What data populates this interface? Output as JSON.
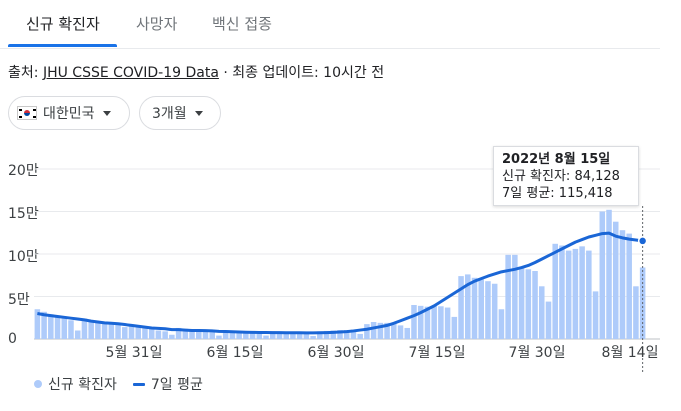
{
  "tabs": [
    "신규 확진자",
    "사망자",
    "백신 접종"
  ],
  "source": {
    "prefix": "출처: ",
    "link": "JHU CSSE COVID-19 Data",
    "suffix": " · 최종 업데이트: 10시간 전"
  },
  "filters": {
    "country": "대한민국",
    "period": "3개월"
  },
  "tooltip": {
    "date": "2022년 8월 15일",
    "cases_line": "신규 확진자: 84,128",
    "avg_line": "7일 평균: 115,418"
  },
  "legend": {
    "bars": "신규 확진자",
    "line": "7일 평균"
  },
  "colors": {
    "bar": "#aecbfa",
    "line": "#1a66d6",
    "accent": "#1a73e8"
  },
  "icons": {
    "country": "south-korea-flag-icon",
    "dropdown": "caret-down-icon"
  },
  "chart_data": {
    "type": "bar",
    "y_tick_labels": [
      "0",
      "5만",
      "10만",
      "15만",
      "20만"
    ],
    "ylim": [
      0,
      200000
    ],
    "x_tick_labels": [
      "5월 31일",
      "6월 15일",
      "6월 30일",
      "7월 15일",
      "7월 30일",
      "8월 14일"
    ],
    "x_start_date": "2022-05-17",
    "x": [
      "05-17",
      "05-18",
      "05-19",
      "05-20",
      "05-21",
      "05-22",
      "05-23",
      "05-24",
      "05-25",
      "05-26",
      "05-27",
      "05-28",
      "05-29",
      "05-30",
      "05-31",
      "06-01",
      "06-02",
      "06-03",
      "06-04",
      "06-05",
      "06-06",
      "06-07",
      "06-08",
      "06-09",
      "06-10",
      "06-11",
      "06-12",
      "06-13",
      "06-14",
      "06-15",
      "06-16",
      "06-17",
      "06-18",
      "06-19",
      "06-20",
      "06-21",
      "06-22",
      "06-23",
      "06-24",
      "06-25",
      "06-26",
      "06-27",
      "06-28",
      "06-29",
      "06-30",
      "07-01",
      "07-02",
      "07-03",
      "07-04",
      "07-05",
      "07-06",
      "07-07",
      "07-08",
      "07-09",
      "07-10",
      "07-11",
      "07-12",
      "07-13",
      "07-14",
      "07-15",
      "07-16",
      "07-17",
      "07-18",
      "07-19",
      "07-20",
      "07-21",
      "07-22",
      "07-23",
      "07-24",
      "07-25",
      "07-26",
      "07-27",
      "07-28",
      "07-29",
      "07-30",
      "07-31",
      "08-01",
      "08-02",
      "08-03",
      "08-04",
      "08-05",
      "08-06",
      "08-07",
      "08-08",
      "08-09",
      "08-10",
      "08-11",
      "08-12",
      "08-13",
      "08-14",
      "08-15"
    ],
    "series": [
      {
        "name": "신규 확진자",
        "type": "bar",
        "values": [
          35000,
          32000,
          29000,
          26000,
          25000,
          22000,
          10000,
          24000,
          22000,
          21000,
          19000,
          18000,
          17000,
          14000,
          15000,
          13500,
          13000,
          12000,
          10000,
          9000,
          5000,
          13000,
          12000,
          11000,
          10500,
          10000,
          8000,
          4000,
          10000,
          9000,
          8500,
          8000,
          7500,
          6000,
          4000,
          9000,
          8000,
          7500,
          7000,
          7500,
          6000,
          3500,
          9000,
          9500,
          10000,
          10500,
          10500,
          11000,
          6000,
          17500,
          20000,
          19000,
          19000,
          18000,
          16000,
          13000,
          40000,
          39000,
          38000,
          39000,
          38500,
          37000,
          26000,
          74000,
          76000,
          72000,
          70000,
          68000,
          65000,
          35000,
          99000,
          99000,
          85000,
          82000,
          80000,
          62000,
          44000,
          112000,
          110000,
          104000,
          106000,
          109000,
          104000,
          56000,
          150000,
          152000,
          138000,
          128000,
          124000,
          62000,
          84128
        ]
      },
      {
        "name": "7일 평균",
        "type": "line",
        "values": [
          30000,
          28500,
          27500,
          26500,
          25500,
          24500,
          23500,
          22500,
          21000,
          20000,
          19000,
          18500,
          18000,
          17000,
          16000,
          15000,
          14000,
          13000,
          12500,
          12000,
          11000,
          11000,
          10500,
          10000,
          10000,
          9800,
          9500,
          9000,
          8800,
          8500,
          8200,
          8000,
          7800,
          7700,
          7600,
          7500,
          7500,
          7400,
          7300,
          7300,
          7200,
          7200,
          7300,
          7500,
          7800,
          8200,
          8700,
          9500,
          10500,
          11500,
          13000,
          14500,
          16000,
          18500,
          21500,
          24500,
          27500,
          31000,
          35000,
          39000,
          44000,
          49000,
          54000,
          59000,
          64000,
          68000,
          71000,
          74000,
          76500,
          79000,
          80500,
          82000,
          84000,
          86500,
          90000,
          94000,
          98000,
          102000,
          106000,
          110000,
          114000,
          117000,
          120000,
          122000,
          124000,
          124500,
          121000,
          119000,
          117500,
          116500,
          115418
        ]
      }
    ]
  }
}
